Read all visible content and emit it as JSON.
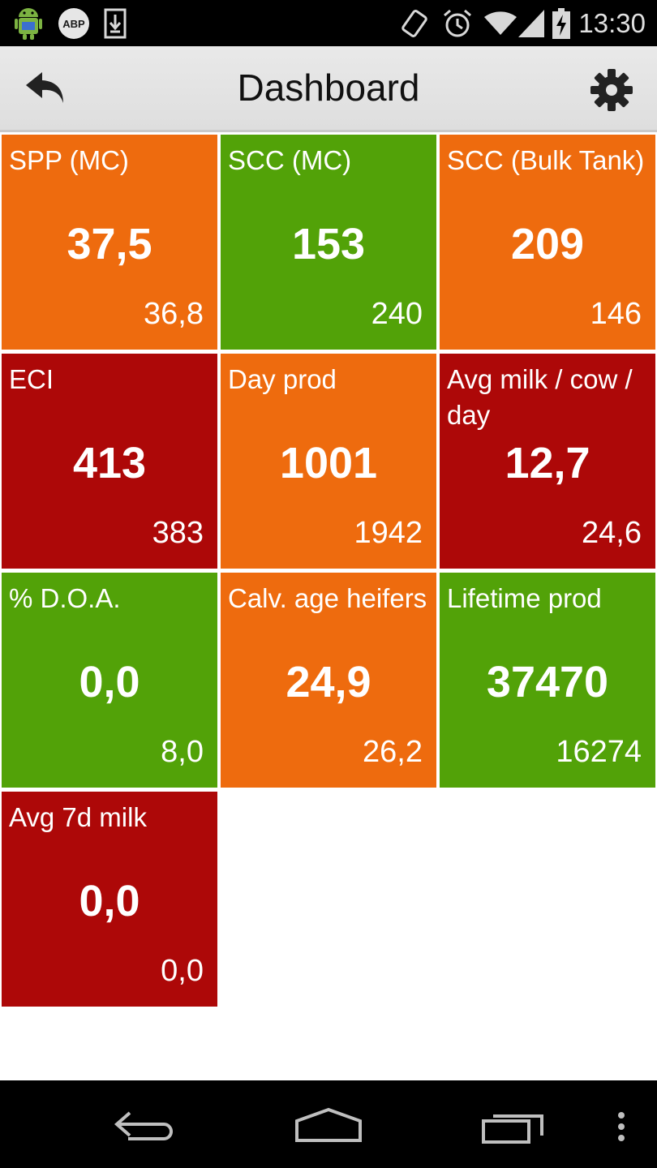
{
  "status_bar": {
    "time": "13:30",
    "abp_label": "ABP",
    "icons": [
      "android-debug-icon",
      "adblock-icon",
      "download-icon",
      "rotate-icon",
      "alarm-icon",
      "wifi-icon",
      "signal-icon",
      "battery-charging-icon"
    ]
  },
  "action_bar": {
    "title": "Dashboard",
    "back_icon": "undo-arrow-icon",
    "settings_icon": "gear-icon"
  },
  "colors": {
    "orange": "#ee6b0e",
    "green": "#52a208",
    "red": "#ad0808"
  },
  "tiles": [
    {
      "label": "SPP (MC)",
      "value": "37,5",
      "sub": "36,8",
      "status": "orange"
    },
    {
      "label": "SCC (MC)",
      "value": "153",
      "sub": "240",
      "status": "green"
    },
    {
      "label": "SCC (Bulk Tank)",
      "value": "209",
      "sub": "146",
      "status": "orange"
    },
    {
      "label": "ECI",
      "value": "413",
      "sub": "383",
      "status": "red"
    },
    {
      "label": "Day prod",
      "value": "1001",
      "sub": "1942",
      "status": "orange"
    },
    {
      "label": "Avg milk / cow / day",
      "value": "12,7",
      "sub": "24,6",
      "status": "red"
    },
    {
      "label": "% D.O.A.",
      "value": "0,0",
      "sub": "8,0",
      "status": "green"
    },
    {
      "label": "Calv. age heifers",
      "value": "24,9",
      "sub": "26,2",
      "status": "orange"
    },
    {
      "label": "Lifetime prod",
      "value": "37470",
      "sub": "16274",
      "status": "green"
    },
    {
      "label": "Avg 7d milk",
      "value": "0,0",
      "sub": "0,0",
      "status": "red"
    }
  ],
  "nav_bar": {
    "icons": [
      "back-icon",
      "home-icon",
      "recent-apps-icon",
      "menu-icon"
    ]
  }
}
